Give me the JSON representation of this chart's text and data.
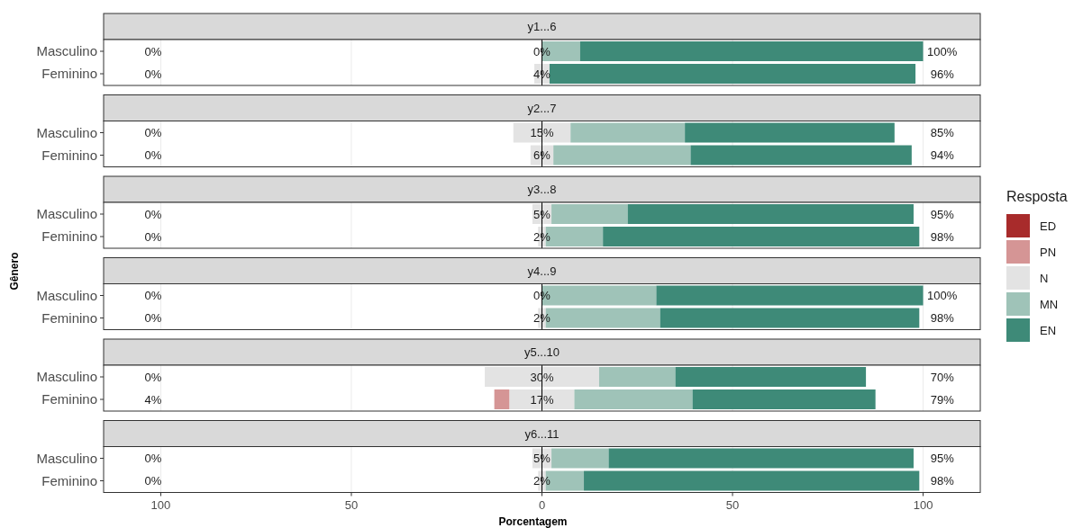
{
  "chart_data": [
    {
      "type": "bar",
      "orientation": "horizontal",
      "title": "y1...6",
      "categories": [
        "Masculino",
        "Feminino"
      ],
      "xlim": [
        -115,
        115
      ],
      "grid": "x",
      "tick_labels": "y",
      "ref_lines": [
        {
          "axis": "x",
          "value": 0,
          "color": "#000000"
        }
      ],
      "series": [
        {
          "color": "#e3e3e3",
          "values": [
            null,
            4
          ],
          "base": [
            null,
            -2
          ]
        },
        {
          "color": "#9fc3b8",
          "values": [
            10,
            null
          ],
          "base": [
            0,
            null
          ]
        },
        {
          "color": "#3e8a78",
          "values": [
            90,
            96
          ],
          "base": [
            10,
            2
          ]
        }
      ],
      "annotations": [
        "0%",
        "0%",
        "100%",
        "0%",
        "4%",
        "96%"
      ]
    },
    {
      "type": "bar",
      "orientation": "horizontal",
      "title": "y2...7",
      "categories": [
        "Masculino",
        "Feminino"
      ],
      "xlim": [
        -115,
        115
      ],
      "grid": "x",
      "tick_labels": "y",
      "ref_lines": [
        {
          "axis": "x",
          "value": 0,
          "color": "#000000"
        }
      ],
      "series": [
        {
          "color": "#e3e3e3",
          "values": [
            15,
            6
          ],
          "base": [
            -7.5,
            -3
          ]
        },
        {
          "color": "#9fc3b8",
          "values": [
            30,
            36
          ],
          "base": [
            7.5,
            3
          ]
        },
        {
          "color": "#3e8a78",
          "values": [
            55,
            58
          ],
          "base": [
            37.5,
            39
          ]
        }
      ],
      "annotations": [
        "0%",
        "15%",
        "85%",
        "0%",
        "6%",
        "94%"
      ]
    },
    {
      "type": "bar",
      "orientation": "horizontal",
      "title": "y3...8",
      "categories": [
        "Masculino",
        "Feminino"
      ],
      "xlim": [
        -115,
        115
      ],
      "grid": "x",
      "tick_labels": "y",
      "ref_lines": [
        {
          "axis": "x",
          "value": 0,
          "color": "#000000"
        }
      ],
      "series": [
        {
          "color": "#e3e3e3",
          "values": [
            5,
            2
          ],
          "base": [
            -2.5,
            -1
          ]
        },
        {
          "color": "#9fc3b8",
          "values": [
            20,
            15
          ],
          "base": [
            2.5,
            1
          ]
        },
        {
          "color": "#3e8a78",
          "values": [
            75,
            83
          ],
          "base": [
            22.5,
            16
          ]
        }
      ],
      "annotations": [
        "0%",
        "5%",
        "95%",
        "0%",
        "2%",
        "98%"
      ]
    },
    {
      "type": "bar",
      "orientation": "horizontal",
      "title": "y4...9",
      "categories": [
        "Masculino",
        "Feminino"
      ],
      "ylabel": "Gênero",
      "legend": "right",
      "legend_title": "Resposta",
      "xlim": [
        -115,
        115
      ],
      "grid": "x",
      "tick_labels": "y",
      "ref_lines": [
        {
          "axis": "x",
          "value": 0,
          "color": "#000000"
        }
      ],
      "series": [
        {
          "name": "ED",
          "color": "#a82b2b",
          "values": [
            null,
            null
          ]
        },
        {
          "name": "PN",
          "color": "#d59595",
          "values": [
            null,
            null
          ]
        },
        {
          "name": "N",
          "color": "#e3e3e3",
          "values": [
            null,
            2
          ],
          "base": [
            null,
            -1
          ]
        },
        {
          "name": "MN",
          "color": "#9fc3b8",
          "values": [
            30,
            30
          ],
          "base": [
            0,
            1
          ]
        },
        {
          "name": "EN",
          "color": "#3e8a78",
          "values": [
            70,
            68
          ],
          "base": [
            30,
            31
          ]
        }
      ],
      "annotations": [
        "0%",
        "0%",
        "100%",
        "0%",
        "2%",
        "98%"
      ]
    },
    {
      "type": "bar",
      "orientation": "horizontal",
      "title": "y5...10",
      "categories": [
        "Masculino",
        "Feminino"
      ],
      "xlim": [
        -115,
        115
      ],
      "grid": "x",
      "tick_labels": "y",
      "ref_lines": [
        {
          "axis": "x",
          "value": 0,
          "color": "#000000"
        }
      ],
      "series": [
        {
          "color": "#d59595",
          "values": [
            null,
            4
          ],
          "base": [
            null,
            -12.5
          ]
        },
        {
          "color": "#e3e3e3",
          "values": [
            30,
            17
          ],
          "base": [
            -15,
            -8.5
          ]
        },
        {
          "color": "#9fc3b8",
          "values": [
            20,
            31
          ],
          "base": [
            15,
            8.5
          ]
        },
        {
          "color": "#3e8a78",
          "values": [
            50,
            48
          ],
          "base": [
            35,
            39.5
          ]
        }
      ],
      "annotations": [
        "0%",
        "30%",
        "70%",
        "4%",
        "17%",
        "79%"
      ]
    },
    {
      "type": "bar",
      "orientation": "horizontal",
      "title": "y6...11",
      "categories": [
        "Masculino",
        "Feminino"
      ],
      "xlabel": "Porcentagem",
      "xlim": [
        -115,
        115
      ],
      "xticks": [
        {
          "value": -100,
          "label": "100"
        },
        {
          "value": -50,
          "label": "50"
        },
        0,
        50,
        100
      ],
      "grid": "x",
      "ref_lines": [
        {
          "axis": "x",
          "value": 0,
          "color": "#000000"
        }
      ],
      "series": [
        {
          "color": "#e3e3e3",
          "values": [
            5,
            2
          ],
          "base": [
            -2.5,
            -1
          ]
        },
        {
          "color": "#9fc3b8",
          "values": [
            15,
            10
          ],
          "base": [
            2.5,
            1
          ]
        },
        {
          "color": "#3e8a78",
          "values": [
            80,
            88
          ],
          "base": [
            17.5,
            11
          ]
        }
      ],
      "annotations": [
        "0%",
        "5%",
        "95%",
        "0%",
        "2%",
        "98%"
      ]
    }
  ]
}
